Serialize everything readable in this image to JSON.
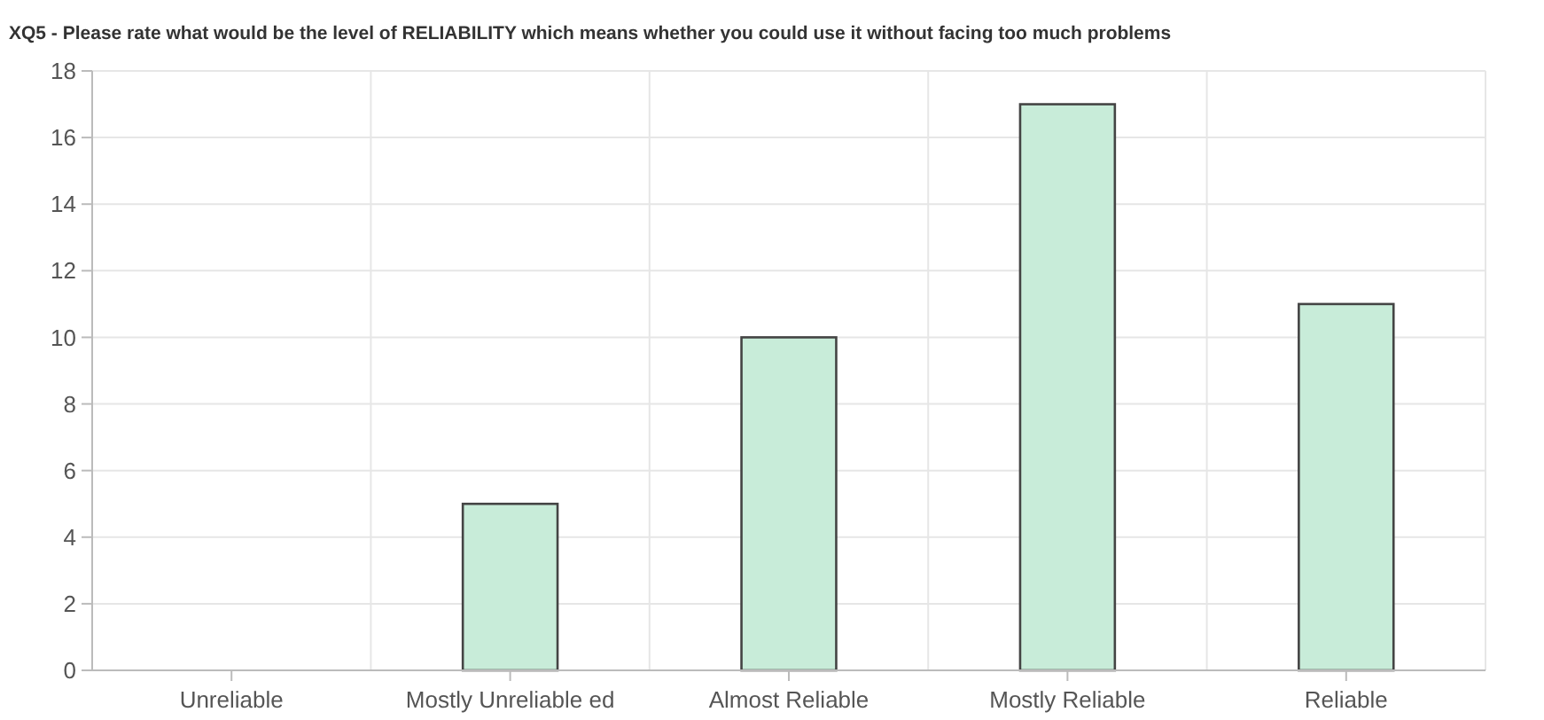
{
  "chart_data": {
    "type": "bar",
    "title": "XQ5 - Please rate what would be the level of RELIABILITY which means whether you could use it without facing too much problems",
    "categories": [
      "Unreliable",
      "Mostly Unreliable ed",
      "Almost Reliable",
      "Mostly Reliable",
      "Reliable"
    ],
    "values": [
      0,
      5,
      10,
      17,
      11
    ],
    "color": "#c8ecd9",
    "ylim": [
      0,
      18
    ],
    "yticks": [
      0,
      2,
      4,
      6,
      8,
      10,
      12,
      14,
      16,
      18
    ],
    "grid": true
  }
}
